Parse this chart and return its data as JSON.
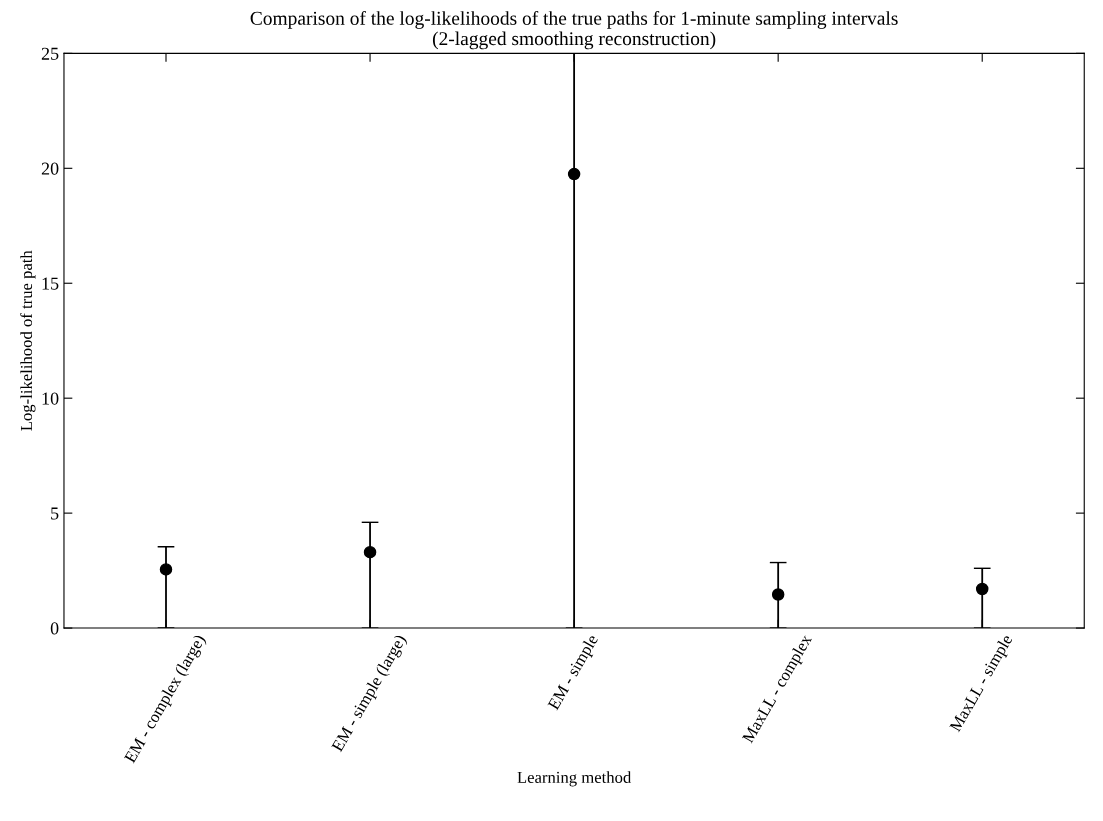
{
  "chart_data": {
    "type": "scatter",
    "title": "Comparison of the log-likelihoods of the true paths for 1-minute sampling intervals\n(2-lagged smoothing reconstruction)",
    "xlabel": "Learning method",
    "ylabel": "Log-likelihood of true path",
    "categories": [
      "EM - complex (large)",
      "EM - simple (large)",
      "EM - simple",
      "MaxLL - complex",
      "MaxLL - simple"
    ],
    "series": [
      {
        "color": "#000000",
        "values": [
          2.55,
          3.3,
          19.75,
          1.46,
          1.7
        ],
        "errors": [
          [
            0,
            3.54
          ],
          [
            0,
            4.6
          ],
          [
            0,
            25
          ],
          [
            0,
            2.85
          ],
          [
            0,
            2.6
          ]
        ]
      }
    ],
    "ylim": [
      0,
      25
    ],
    "yticks": [
      0,
      5,
      10,
      15,
      20,
      25
    ],
    "marker": "circle",
    "grid": false,
    "legend": false
  }
}
